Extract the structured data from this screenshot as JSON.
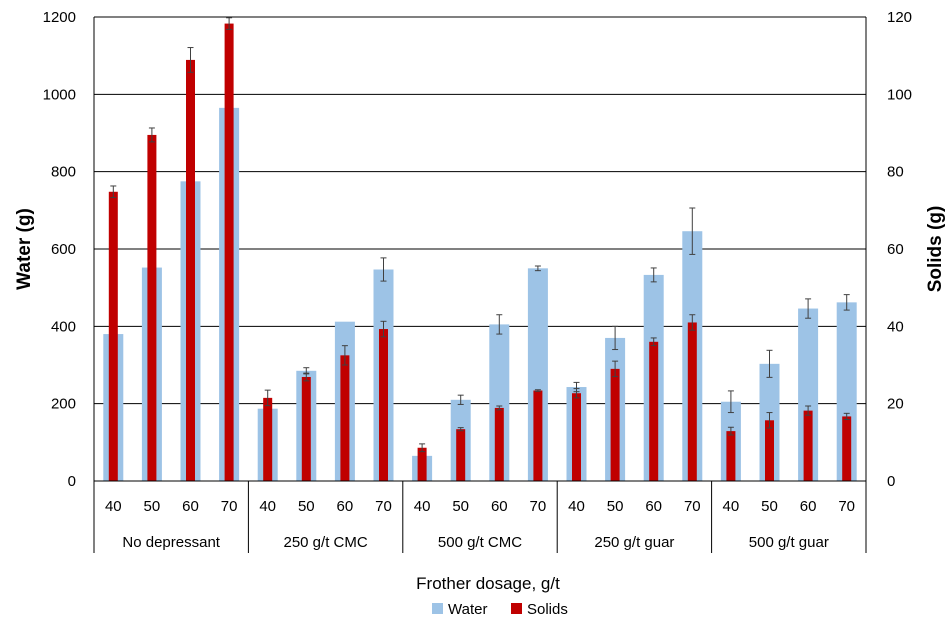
{
  "chart_data": {
    "type": "bar",
    "xlabel": "Frother dosage, g/t",
    "ylabel_left": "Water (g)",
    "ylabel_right": "Solids (g)",
    "ylim_left": [
      0,
      1200
    ],
    "ylim_right": [
      0,
      120
    ],
    "yticks_left": [
      0,
      200,
      400,
      600,
      800,
      1000,
      1200
    ],
    "yticks_right": [
      0,
      20,
      40,
      60,
      80,
      100,
      120
    ],
    "grid": true,
    "legend_position": "bottom",
    "groups": [
      "No depressant",
      "250 g/t CMC",
      "500 g/t CMC",
      "250 g/t guar",
      "500 g/t guar"
    ],
    "dosages": [
      "40",
      "50",
      "60",
      "70"
    ],
    "series": [
      {
        "name": "Water",
        "axis": "left",
        "color": "#9dc3e6",
        "values": [
          [
            380,
            552,
            775,
            965
          ],
          [
            187,
            285,
            412,
            547
          ],
          [
            65,
            210,
            405,
            550
          ],
          [
            243,
            370,
            533,
            646
          ],
          [
            205,
            303,
            446,
            462
          ]
        ],
        "errors": [
          [
            0,
            0,
            0,
            0
          ],
          [
            0,
            8,
            0,
            30
          ],
          [
            0,
            12,
            25,
            6
          ],
          [
            12,
            30,
            18,
            60
          ],
          [
            28,
            35,
            25,
            20
          ]
        ]
      },
      {
        "name": "Solids",
        "axis": "right",
        "color": "#c00000",
        "values": [
          [
            74.8,
            89.5,
            108.9,
            118.3
          ],
          [
            21.5,
            26.9,
            32.5,
            39.3
          ],
          [
            8.6,
            13.4,
            18.9,
            23.4
          ],
          [
            22.7,
            29.0,
            36.0,
            41.0
          ],
          [
            12.9,
            15.7,
            18.2,
            16.7
          ]
        ],
        "errors": [
          [
            1.5,
            1.8,
            3.2,
            1.5
          ],
          [
            2.0,
            1.0,
            2.5,
            2.0
          ],
          [
            1.0,
            0.4,
            0.5,
            0.2
          ],
          [
            1.2,
            2.0,
            1.0,
            2.0
          ],
          [
            1.0,
            2.0,
            1.2,
            0.8
          ]
        ]
      }
    ]
  }
}
